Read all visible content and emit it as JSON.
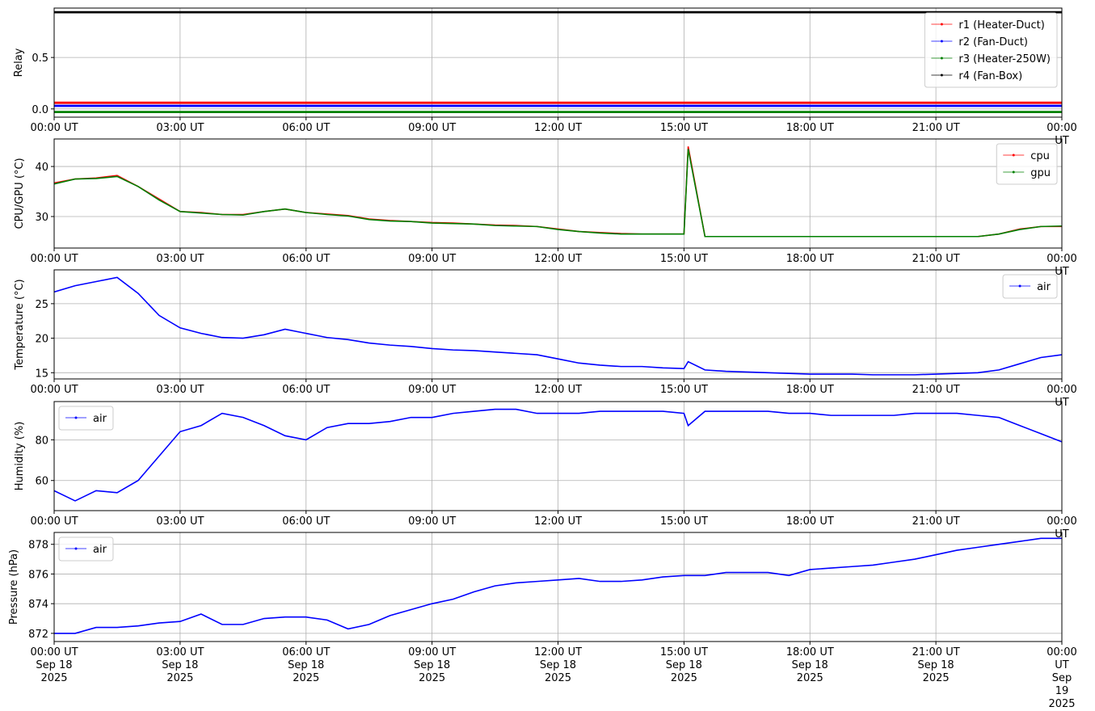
{
  "chart_data": [
    {
      "type": "line",
      "ylabel": "Relay",
      "legend": "upper right",
      "grid": true,
      "x": [
        0,
        24
      ],
      "xlim": [
        0,
        24
      ],
      "xticks": [
        {
          "value": 0,
          "label": "00:00 UT"
        },
        {
          "value": 3,
          "label": "03:00 UT"
        },
        {
          "value": 6,
          "label": "06:00 UT"
        },
        {
          "value": 9,
          "label": "09:00 UT"
        },
        {
          "value": 12,
          "label": "12:00 UT"
        },
        {
          "value": 15,
          "label": "15:00 UT"
        },
        {
          "value": 18,
          "label": "18:00 UT"
        },
        {
          "value": 21,
          "label": "21:00 UT"
        },
        {
          "value": 24,
          "label": "00:00 UT"
        }
      ],
      "ylim": [
        -0.08,
        0.98
      ],
      "yticks": [
        {
          "value": 0,
          "label": "0.0"
        },
        0.5
      ],
      "series": [
        {
          "name": "r1 (Heater-Duct)",
          "color": "#ff0000",
          "values": [
            0.06,
            0.06
          ]
        },
        {
          "name": "r2 (Fan-Duct)",
          "color": "#0000ff",
          "values": [
            0.03,
            0.03
          ]
        },
        {
          "name": "r3 (Heater-250W)",
          "color": "#008000",
          "values": [
            -0.03,
            -0.03
          ]
        },
        {
          "name": "r4 (Fan-Box)",
          "color": "#000000",
          "values": [
            0.94,
            0.94
          ]
        }
      ]
    },
    {
      "type": "line",
      "ylabel": "CPU/GPU (°C)",
      "legend": "upper right",
      "grid": true,
      "x": [
        0,
        0.5,
        1,
        1.5,
        2,
        2.5,
        3,
        3.5,
        4,
        4.5,
        5,
        5.5,
        6,
        6.5,
        7,
        7.5,
        8,
        8.5,
        9,
        9.5,
        10,
        10.5,
        11,
        11.5,
        12,
        12.5,
        13,
        13.5,
        14,
        14.5,
        15,
        15.1,
        15.5,
        16,
        16.5,
        17,
        17.5,
        18,
        18.5,
        19,
        19.5,
        20,
        20.5,
        21,
        21.5,
        22,
        22.5,
        23,
        23.5,
        24
      ],
      "xlim": [
        0,
        24
      ],
      "xticks": [
        {
          "value": 0,
          "label": "00:00 UT"
        },
        {
          "value": 3,
          "label": "03:00 UT"
        },
        {
          "value": 6,
          "label": "06:00 UT"
        },
        {
          "value": 9,
          "label": "09:00 UT"
        },
        {
          "value": 12,
          "label": "12:00 UT"
        },
        {
          "value": 15,
          "label": "15:00 UT"
        },
        {
          "value": 18,
          "label": "18:00 UT"
        },
        {
          "value": 21,
          "label": "21:00 UT"
        },
        {
          "value": 24,
          "label": "00:00 UT"
        }
      ],
      "ylim": [
        23.7,
        45.5
      ],
      "yticks": [
        30,
        40
      ],
      "series": [
        {
          "name": "cpu",
          "color": "#ff0000",
          "values": [
            36.7,
            37.5,
            37.7,
            38.2,
            36.0,
            33.5,
            31.0,
            30.8,
            30.4,
            30.4,
            31.0,
            31.5,
            30.8,
            30.5,
            30.2,
            29.5,
            29.2,
            29.0,
            28.8,
            28.7,
            28.5,
            28.3,
            28.2,
            28.0,
            27.5,
            27.0,
            26.8,
            26.6,
            26.5,
            26.5,
            26.5,
            44.0,
            26.0,
            26.0,
            26.0,
            26.0,
            26.0,
            26.0,
            26.0,
            26.0,
            26.0,
            26.0,
            26.0,
            26.0,
            26.0,
            26.0,
            26.5,
            27.5,
            28.0,
            28.0
          ]
        },
        {
          "name": "gpu",
          "color": "#008000",
          "values": [
            36.5,
            37.5,
            37.6,
            38.0,
            36.0,
            33.3,
            31.0,
            30.7,
            30.4,
            30.3,
            31.0,
            31.5,
            30.8,
            30.4,
            30.1,
            29.4,
            29.1,
            29.0,
            28.7,
            28.6,
            28.5,
            28.2,
            28.1,
            28.0,
            27.4,
            27.0,
            26.7,
            26.5,
            26.5,
            26.5,
            26.5,
            43.5,
            26.0,
            26.0,
            26.0,
            26.0,
            26.0,
            26.0,
            26.0,
            26.0,
            26.0,
            26.0,
            26.0,
            26.0,
            26.0,
            26.0,
            26.5,
            27.4,
            28.0,
            28.1
          ]
        }
      ]
    },
    {
      "type": "line",
      "ylabel": "Temperature (°C)",
      "legend": "upper right",
      "grid": true,
      "x": [
        0,
        0.5,
        1,
        1.5,
        2,
        2.5,
        3,
        3.5,
        4,
        4.5,
        5,
        5.5,
        6,
        6.5,
        7,
        7.5,
        8,
        8.5,
        9,
        9.5,
        10,
        10.5,
        11,
        11.5,
        12,
        12.5,
        13,
        13.5,
        14,
        14.5,
        15,
        15.1,
        15.5,
        16,
        16.5,
        17,
        17.5,
        18,
        18.5,
        19,
        19.5,
        20,
        20.5,
        21,
        21.5,
        22,
        22.5,
        23,
        23.5,
        24
      ],
      "xlim": [
        0,
        24
      ],
      "xticks": [
        {
          "value": 0,
          "label": "00:00 UT"
        },
        {
          "value": 3,
          "label": "03:00 UT"
        },
        {
          "value": 6,
          "label": "06:00 UT"
        },
        {
          "value": 9,
          "label": "09:00 UT"
        },
        {
          "value": 12,
          "label": "12:00 UT"
        },
        {
          "value": 15,
          "label": "15:00 UT"
        },
        {
          "value": 18,
          "label": "18:00 UT"
        },
        {
          "value": 21,
          "label": "21:00 UT"
        },
        {
          "value": 24,
          "label": "00:00 UT"
        }
      ],
      "ylim": [
        14.1,
        29.9
      ],
      "yticks": [
        15,
        20,
        25
      ],
      "series": [
        {
          "name": "air",
          "color": "#0000ff",
          "values": [
            26.7,
            27.6,
            28.2,
            28.8,
            26.5,
            23.3,
            21.5,
            20.7,
            20.1,
            20.0,
            20.5,
            21.3,
            20.7,
            20.1,
            19.8,
            19.3,
            19.0,
            18.8,
            18.5,
            18.3,
            18.2,
            18.0,
            17.8,
            17.6,
            17.0,
            16.4,
            16.1,
            15.9,
            15.9,
            15.7,
            15.6,
            16.6,
            15.4,
            15.2,
            15.1,
            15.0,
            14.9,
            14.8,
            14.8,
            14.8,
            14.7,
            14.7,
            14.7,
            14.8,
            14.9,
            15.0,
            15.4,
            16.3,
            17.2,
            17.6
          ]
        }
      ]
    },
    {
      "type": "line",
      "ylabel": "Humidity (%)",
      "legend": "upper left",
      "grid": true,
      "x": [
        0,
        0.5,
        1,
        1.5,
        2,
        2.5,
        3,
        3.5,
        4,
        4.5,
        5,
        5.5,
        6,
        6.5,
        7,
        7.5,
        8,
        8.5,
        9,
        9.5,
        10,
        10.5,
        11,
        11.5,
        12,
        12.5,
        13,
        13.5,
        14,
        14.5,
        15,
        15.1,
        15.5,
        16,
        16.5,
        17,
        17.5,
        18,
        18.5,
        19,
        19.5,
        20,
        20.5,
        21,
        21.5,
        22,
        22.5,
        23,
        23.5,
        24
      ],
      "xlim": [
        0,
        24
      ],
      "xticks": [
        {
          "value": 0,
          "label": "00:00 UT"
        },
        {
          "value": 3,
          "label": "03:00 UT"
        },
        {
          "value": 6,
          "label": "06:00 UT"
        },
        {
          "value": 9,
          "label": "09:00 UT"
        },
        {
          "value": 12,
          "label": "12:00 UT"
        },
        {
          "value": 15,
          "label": "15:00 UT"
        },
        {
          "value": 18,
          "label": "18:00 UT"
        },
        {
          "value": 21,
          "label": "21:00 UT"
        },
        {
          "value": 24,
          "label": "00:00 UT"
        }
      ],
      "ylim": [
        45.2,
        98.8
      ],
      "yticks": [
        60,
        80
      ],
      "series": [
        {
          "name": "air",
          "color": "#0000ff",
          "values": [
            55,
            50,
            55,
            54,
            60,
            72,
            84,
            87,
            93,
            91,
            87,
            82,
            80,
            86,
            88,
            88,
            89,
            91,
            91,
            93,
            94,
            95,
            95,
            93,
            93,
            93,
            94,
            94,
            94,
            94,
            93,
            87,
            94,
            94,
            94,
            94,
            93,
            93,
            92,
            92,
            92,
            92,
            93,
            93,
            93,
            92,
            91,
            87,
            83,
            79
          ]
        }
      ]
    },
    {
      "type": "line",
      "ylabel": "Pressure (hPa)",
      "legend": "upper left",
      "grid": true,
      "x": [
        0,
        0.5,
        1,
        1.5,
        2,
        2.5,
        3,
        3.5,
        4,
        4.5,
        5,
        5.5,
        6,
        6.5,
        7,
        7.5,
        8,
        8.5,
        9,
        9.5,
        10,
        10.5,
        11,
        11.5,
        12,
        12.5,
        13,
        13.5,
        14,
        14.5,
        15,
        15.1,
        15.5,
        16,
        16.5,
        17,
        17.5,
        18,
        18.5,
        19,
        19.5,
        20,
        20.5,
        21,
        21.5,
        22,
        22.5,
        23,
        23.5,
        24
      ],
      "xlim": [
        0,
        24
      ],
      "xticks": [
        {
          "value": 0,
          "label": "00:00 UT\nSep 18\n2025"
        },
        {
          "value": 3,
          "label": "03:00 UT\nSep 18\n2025"
        },
        {
          "value": 6,
          "label": "06:00 UT\nSep 18\n2025"
        },
        {
          "value": 9,
          "label": "09:00 UT\nSep 18\n2025"
        },
        {
          "value": 12,
          "label": "12:00 UT\nSep 18\n2025"
        },
        {
          "value": 15,
          "label": "15:00 UT\nSep 18\n2025"
        },
        {
          "value": 18,
          "label": "18:00 UT\nSep 18\n2025"
        },
        {
          "value": 21,
          "label": "21:00 UT\nSep 18\n2025"
        },
        {
          "value": 24,
          "label": "00:00 UT\nSep 19\n2025"
        }
      ],
      "ylim": [
        871.45,
        878.8
      ],
      "yticks": [
        872,
        874,
        876,
        878
      ],
      "series": [
        {
          "name": "air",
          "color": "#0000ff",
          "values": [
            872.0,
            872.0,
            872.4,
            872.4,
            872.5,
            872.7,
            872.8,
            873.3,
            872.6,
            872.6,
            873.0,
            873.1,
            873.1,
            872.9,
            872.3,
            872.6,
            873.2,
            873.6,
            874.0,
            874.3,
            874.8,
            875.2,
            875.4,
            875.5,
            875.6,
            875.7,
            875.5,
            875.5,
            875.6,
            875.8,
            875.9,
            875.9,
            875.9,
            876.1,
            876.1,
            876.1,
            875.9,
            876.3,
            876.4,
            876.5,
            876.6,
            876.8,
            877.0,
            877.3,
            877.6,
            877.8,
            878.0,
            878.2,
            878.4,
            878.4
          ]
        }
      ]
    }
  ]
}
